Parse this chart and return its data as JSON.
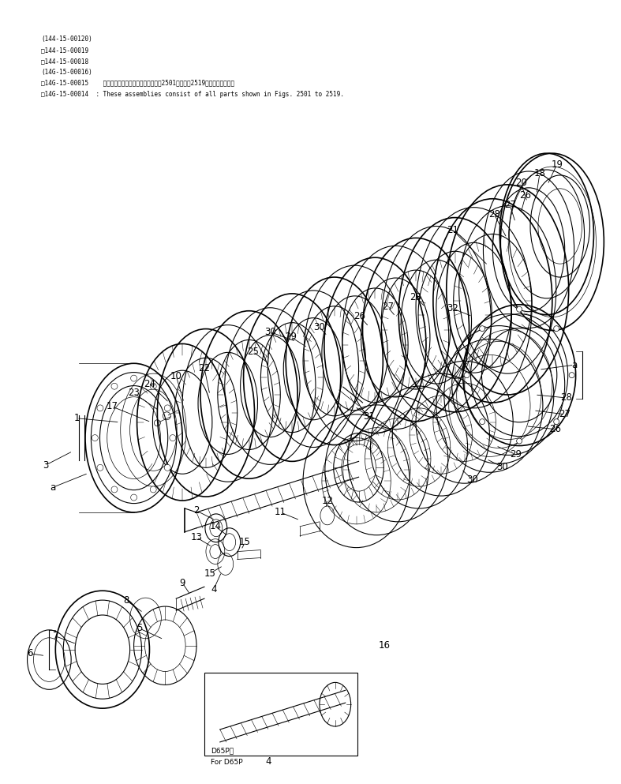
{
  "bg_color": "#ffffff",
  "line_color": "#000000",
  "fig_width": 7.87,
  "fig_height": 9.93,
  "dpi": 100,
  "header_lines": [
    "(144-15-00120)",
    "□144-15-00019",
    "□144-15-00018",
    "(14G-15-00016)",
    "□14G-15-00015    これらのアセンブリの構成部品は第2501図から第2519図まで含みます．",
    "□14G-15-00014  : These assemblies consist of all parts shown in Figs. 2501 to 2519."
  ]
}
